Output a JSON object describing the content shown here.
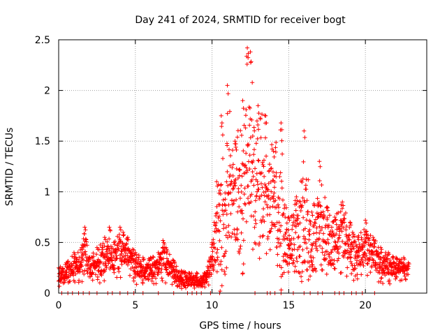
{
  "chart_data": {
    "type": "scatter",
    "title": "Day 241 of 2024, SRMTID for receiver bogt",
    "xlabel": "GPS time / hours",
    "ylabel": "SRMTID / TECUs",
    "xlim": [
      0,
      24
    ],
    "ylim": [
      0,
      2.5
    ],
    "xticks": [
      0,
      5,
      10,
      15,
      20
    ],
    "xtick_labels": [
      "0",
      "5",
      "10",
      "15",
      "20"
    ],
    "yticks": [
      0,
      0.5,
      1,
      1.5,
      2,
      2.5
    ],
    "ytick_labels": [
      "0",
      "0.5",
      "1",
      "1.5",
      "2",
      "2.5"
    ],
    "grid": true,
    "marker": "+",
    "series": [
      {
        "name": "SRMTID",
        "color": "#ff0000",
        "envelope_hours": [
          0,
          0.5,
          1,
          1.5,
          1.7,
          2,
          2.5,
          3,
          3.3,
          3.6,
          4,
          4.2,
          4.5,
          5,
          5.5,
          6,
          6.5,
          6.8,
          7,
          7.5,
          8,
          8.5,
          9,
          9.5,
          10,
          10.3,
          10.6,
          11,
          11.5,
          12,
          12.3,
          12.5,
          13,
          13.5,
          14,
          14.5,
          15,
          15.5,
          16,
          16.5,
          17,
          17.5,
          18,
          18.5,
          19,
          19.5,
          20,
          20.5,
          21,
          21.5,
          22,
          22.5,
          22.8
        ],
        "envelope_median": [
          0.15,
          0.2,
          0.25,
          0.3,
          0.5,
          0.22,
          0.25,
          0.32,
          0.4,
          0.32,
          0.42,
          0.38,
          0.4,
          0.25,
          0.22,
          0.2,
          0.25,
          0.35,
          0.28,
          0.2,
          0.12,
          0.12,
          0.12,
          0.12,
          0.3,
          0.6,
          0.45,
          0.9,
          0.85,
          0.75,
          1.4,
          1.2,
          0.95,
          0.9,
          0.95,
          0.6,
          0.45,
          0.5,
          0.6,
          0.4,
          0.65,
          0.45,
          0.45,
          0.55,
          0.35,
          0.35,
          0.45,
          0.35,
          0.28,
          0.25,
          0.25,
          0.25,
          0.22
        ],
        "envelope_max": [
          0.25,
          0.3,
          0.4,
          0.45,
          0.65,
          0.35,
          0.45,
          0.55,
          0.65,
          0.5,
          0.65,
          0.6,
          0.55,
          0.4,
          0.35,
          0.35,
          0.4,
          0.52,
          0.45,
          0.32,
          0.22,
          0.2,
          0.2,
          0.2,
          0.5,
          1.1,
          1.75,
          2.05,
          1.5,
          1.9,
          2.42,
          2.38,
          1.85,
          1.75,
          1.4,
          1.68,
          0.75,
          0.95,
          1.6,
          0.8,
          1.3,
          0.85,
          0.75,
          0.9,
          0.7,
          0.55,
          0.72,
          0.55,
          0.45,
          0.4,
          0.35,
          0.35,
          0.3
        ],
        "zero_points_hours": [
          0.2,
          0.6,
          0.9,
          1.3,
          1.6,
          2.0,
          2.5,
          3.2,
          3.5,
          4.0,
          4.5,
          4.9,
          5.5,
          6.5,
          7.5,
          8.4,
          8.7,
          9.0,
          9.3,
          9.9,
          10.5,
          12.8,
          13.6,
          13.8,
          14.1,
          14.5,
          15.3,
          16.0,
          16.4,
          16.9,
          17.2,
          18.0,
          18.3,
          18.6,
          19.1,
          19.4,
          19.8,
          20.6
        ]
      }
    ]
  }
}
